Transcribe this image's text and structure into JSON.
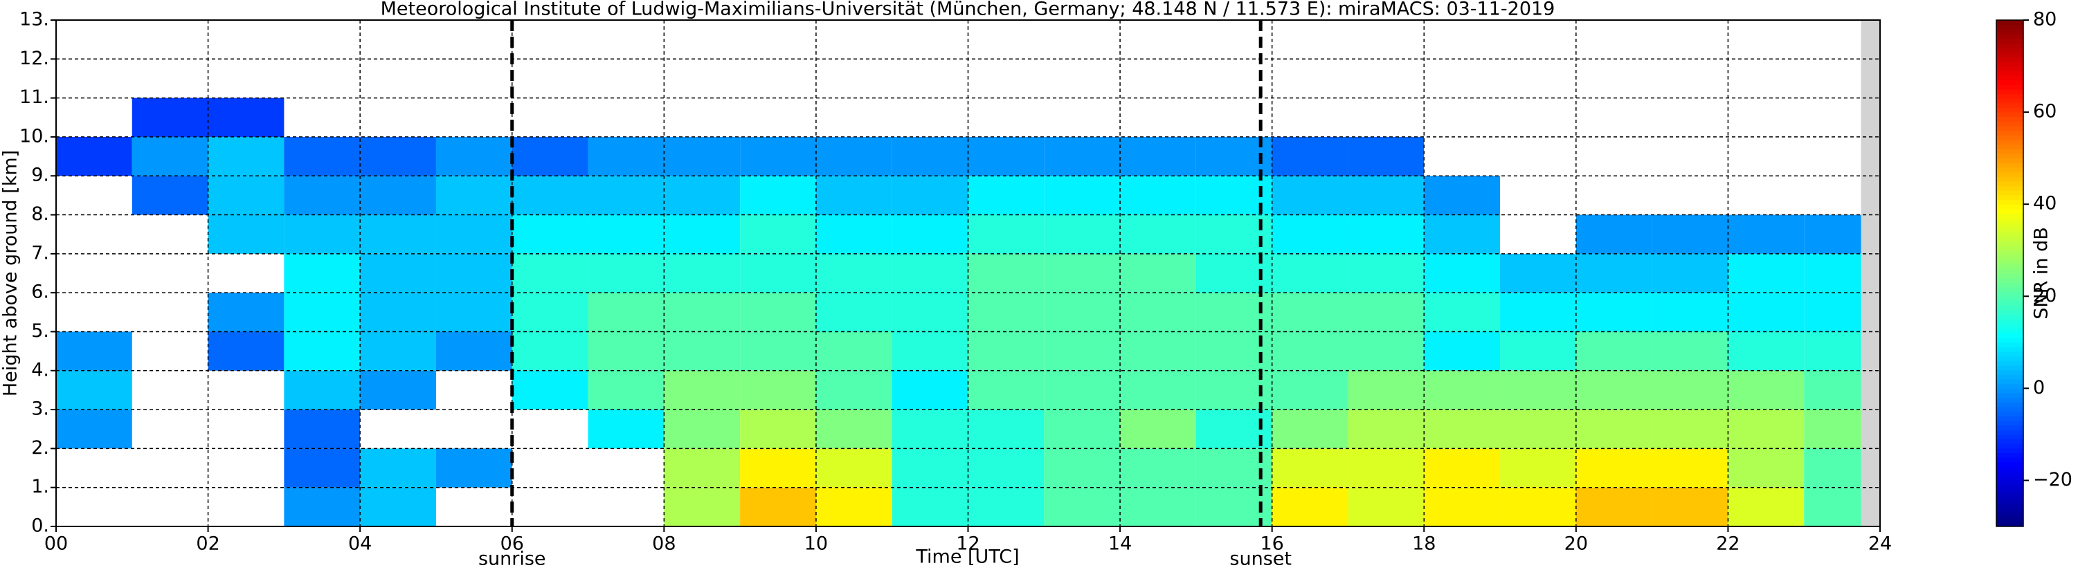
{
  "chart_data": {
    "type": "heatmap",
    "title": "Meteorological Institute of Ludwig-Maximilians-Universität (München, Germany; 48.148 N / 11.573 E):    miraMACS: 03-11-2019",
    "x_label": "Time [UTC]",
    "y_label": "Height above ground [km]",
    "colorbar_label": "SNR in dB",
    "colormap": "jet",
    "x_edges": [
      0,
      1,
      2,
      3,
      4,
      5,
      6,
      7,
      8,
      9,
      10,
      11,
      12,
      13,
      14,
      15,
      16,
      17,
      18,
      19,
      20,
      21,
      22,
      23,
      24
    ],
    "y_edges": [
      0,
      1,
      2,
      3,
      4,
      5,
      6,
      7,
      8,
      9,
      10,
      11,
      12,
      13
    ],
    "z": [
      [
        null,
        null,
        null,
        0,
        5,
        null,
        null,
        null,
        30,
        45,
        40,
        15,
        15,
        20,
        20,
        20,
        40,
        35,
        40,
        40,
        45,
        45,
        35,
        20
      ],
      [
        null,
        null,
        null,
        -5,
        5,
        0,
        null,
        null,
        30,
        40,
        35,
        15,
        15,
        20,
        20,
        20,
        35,
        35,
        40,
        35,
        40,
        40,
        30,
        20
      ],
      [
        0,
        null,
        null,
        -5,
        null,
        null,
        null,
        10,
        25,
        30,
        25,
        15,
        15,
        20,
        25,
        15,
        25,
        30,
        30,
        30,
        30,
        30,
        30,
        25
      ],
      [
        5,
        null,
        null,
        5,
        0,
        null,
        10,
        20,
        25,
        25,
        20,
        10,
        20,
        20,
        20,
        20,
        20,
        25,
        25,
        25,
        25,
        25,
        25,
        20
      ],
      [
        0,
        null,
        -5,
        10,
        5,
        0,
        15,
        20,
        20,
        20,
        20,
        15,
        20,
        20,
        20,
        20,
        20,
        20,
        10,
        15,
        20,
        20,
        15,
        15
      ],
      [
        null,
        null,
        0,
        10,
        5,
        5,
        15,
        20,
        20,
        20,
        15,
        15,
        20,
        20,
        20,
        20,
        20,
        20,
        15,
        10,
        10,
        10,
        10,
        10
      ],
      [
        null,
        null,
        null,
        10,
        5,
        5,
        15,
        15,
        15,
        15,
        15,
        15,
        20,
        20,
        20,
        15,
        15,
        15,
        10,
        5,
        5,
        5,
        10,
        10
      ],
      [
        null,
        null,
        5,
        5,
        5,
        5,
        10,
        10,
        10,
        15,
        10,
        10,
        15,
        15,
        15,
        15,
        10,
        10,
        5,
        null,
        0,
        0,
        0,
        0
      ],
      [
        null,
        -5,
        5,
        0,
        0,
        5,
        5,
        5,
        5,
        10,
        5,
        5,
        10,
        10,
        10,
        10,
        5,
        5,
        0,
        null,
        null,
        null,
        null,
        null
      ],
      [
        -10,
        0,
        5,
        -5,
        -5,
        0,
        -5,
        0,
        0,
        0,
        0,
        0,
        0,
        0,
        0,
        0,
        -5,
        -5,
        null,
        null,
        null,
        null,
        null,
        null
      ],
      [
        null,
        -10,
        -10,
        null,
        null,
        null,
        null,
        null,
        null,
        null,
        null,
        null,
        null,
        null,
        null,
        null,
        null,
        null,
        null,
        null,
        null,
        null,
        null,
        null
      ],
      [
        null,
        null,
        null,
        null,
        null,
        null,
        null,
        null,
        null,
        null,
        null,
        null,
        null,
        null,
        null,
        null,
        null,
        null,
        null,
        null,
        null,
        null,
        null,
        null
      ],
      [
        null,
        null,
        null,
        null,
        null,
        null,
        null,
        null,
        null,
        null,
        null,
        null,
        null,
        null,
        null,
        null,
        null,
        null,
        null,
        null,
        null,
        null,
        null,
        null
      ]
    ],
    "xlim": [
      0,
      24
    ],
    "xticks": [
      {
        "value": 0,
        "label": "00"
      },
      {
        "value": 2,
        "label": "02"
      },
      {
        "value": 4,
        "label": "04"
      },
      {
        "value": 6,
        "label": "06"
      },
      {
        "value": 8,
        "label": "08"
      },
      10,
      12,
      14,
      16,
      18,
      20,
      22,
      24
    ],
    "ylim": [
      0,
      13
    ],
    "yticks": [
      {
        "value": 0,
        "label": "0."
      },
      {
        "value": 1,
        "label": "1."
      },
      {
        "value": 2,
        "label": "2."
      },
      {
        "value": 3,
        "label": "3."
      },
      {
        "value": 4,
        "label": "4."
      },
      {
        "value": 5,
        "label": "5."
      },
      {
        "value": 6,
        "label": "6."
      },
      {
        "value": 7,
        "label": "7."
      },
      {
        "value": 8,
        "label": "8."
      },
      {
        "value": 9,
        "label": "9."
      },
      {
        "value": 10,
        "label": "10."
      },
      {
        "value": 11,
        "label": "11."
      },
      {
        "value": 12,
        "label": "12."
      },
      {
        "value": 13,
        "label": "13."
      }
    ],
    "clim": [
      -30,
      80
    ],
    "cticks": [
      {
        "value": -20,
        "label": "−20"
      },
      0,
      20,
      40,
      60,
      80
    ],
    "grid": true,
    "shade_x": [
      23.75,
      24
    ],
    "vlines": [
      {
        "x": 6.0,
        "label": "sunrise"
      },
      {
        "x": 15.85,
        "label": "sunset"
      }
    ]
  }
}
